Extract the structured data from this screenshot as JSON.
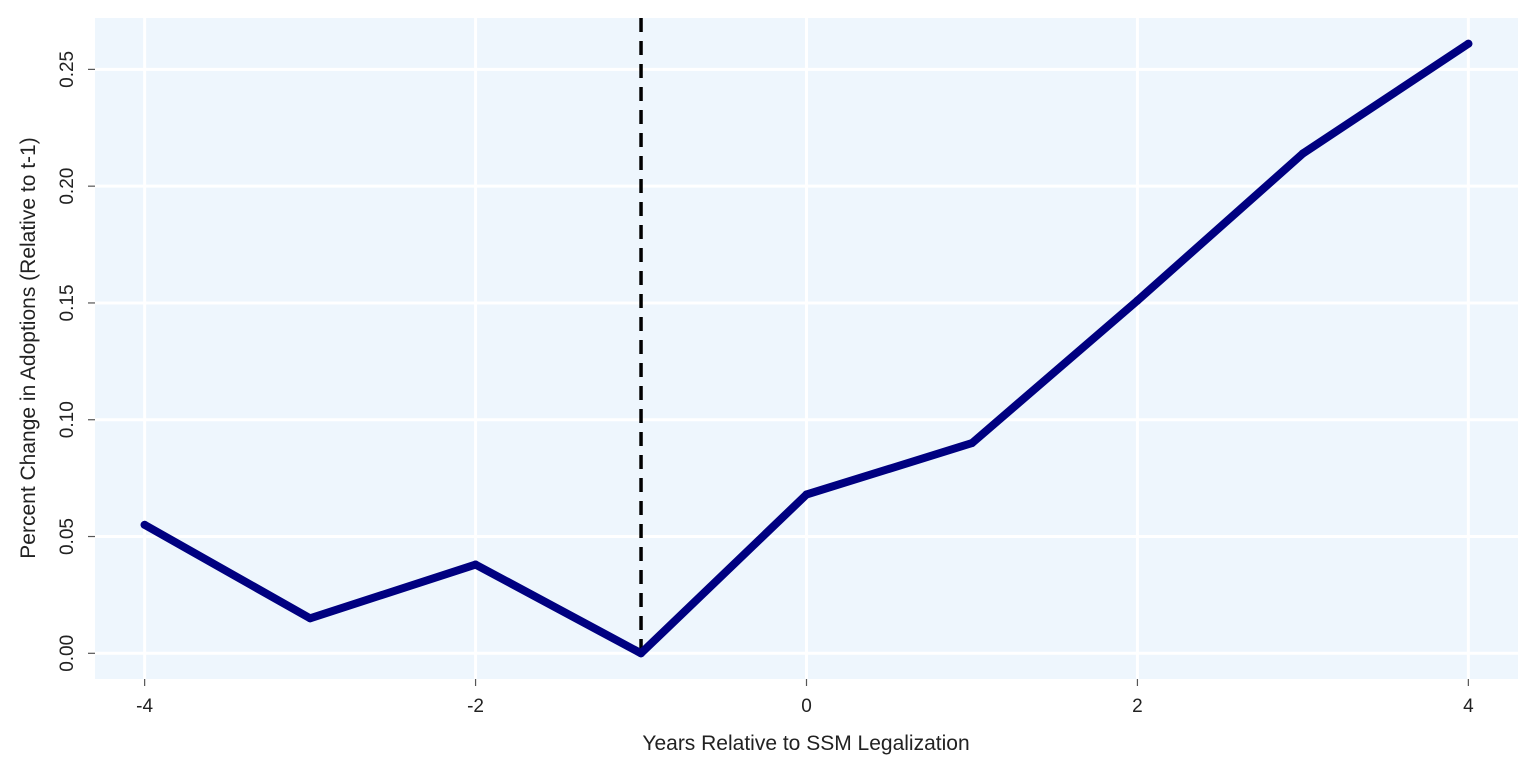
{
  "chart_data": {
    "type": "line",
    "title": "",
    "xlabel": "Years Relative to SSM Legalization",
    "ylabel": "Percent Change in Adoptions (Relative to t-1)",
    "xlim": [
      -4.3,
      4.3
    ],
    "ylim": [
      -0.011,
      0.272
    ],
    "x_ticks": [
      -4,
      -2,
      0,
      2,
      4
    ],
    "x_tick_labels": [
      "-4",
      "-2",
      "0",
      "2",
      "4"
    ],
    "y_ticks": [
      0.0,
      0.05,
      0.1,
      0.15,
      0.2,
      0.25
    ],
    "y_tick_labels": [
      "0.00",
      "0.05",
      "0.10",
      "0.15",
      "0.20",
      "0.25"
    ],
    "grid": true,
    "legend": "none",
    "reference_line": {
      "x": -1,
      "style": "dashed",
      "color": "#000000"
    },
    "series": [
      {
        "x": [
          -4,
          -3,
          -2,
          -1,
          0,
          1,
          2,
          3,
          4
        ],
        "y": [
          0.055,
          0.015,
          0.038,
          0.0,
          0.068,
          0.09,
          0.151,
          0.214,
          0.261
        ],
        "color": "#000080"
      }
    ],
    "colors": {
      "plot_background": "#eef6fd",
      "grid": "#ffffff",
      "line": "#000080",
      "reference_line": "#000000"
    }
  }
}
